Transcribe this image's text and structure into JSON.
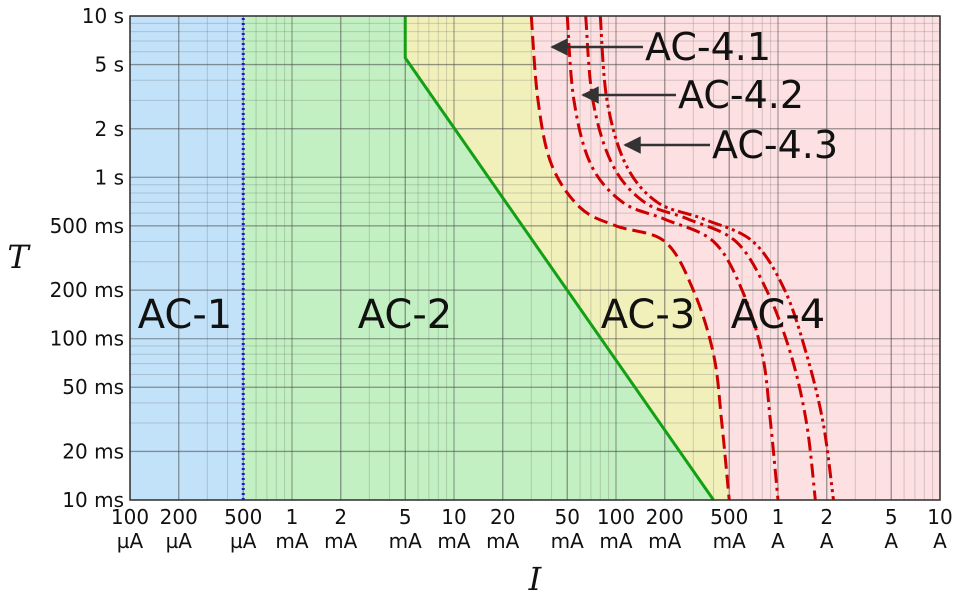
{
  "chart_data": {
    "type": "line",
    "x_label": "I",
    "y_label": "T",
    "xscale": "log",
    "yscale": "log",
    "xlim": [
      0.1,
      10000
    ],
    "ylim": [
      10,
      10000
    ],
    "xticks": [
      {
        "value": 0.1,
        "label": "100 µA"
      },
      {
        "value": 0.2,
        "label": "200 µA"
      },
      {
        "value": 0.5,
        "label": "500 µA"
      },
      {
        "value": 1,
        "label": "1 mA"
      },
      {
        "value": 2,
        "label": "2 mA"
      },
      {
        "value": 5,
        "label": "5 mA"
      },
      {
        "value": 10,
        "label": "10 mA"
      },
      {
        "value": 20,
        "label": "20 mA"
      },
      {
        "value": 50,
        "label": "50 mA"
      },
      {
        "value": 100,
        "label": "100 mA"
      },
      {
        "value": 200,
        "label": "200 mA"
      },
      {
        "value": 500,
        "label": "500 mA"
      },
      {
        "value": 1000,
        "label": "1 A"
      },
      {
        "value": 2000,
        "label": "2 A"
      },
      {
        "value": 5000,
        "label": "5 A"
      },
      {
        "value": 10000,
        "label": "10 A"
      }
    ],
    "yticks": [
      {
        "value": 10,
        "label": "10 ms"
      },
      {
        "value": 20,
        "label": "20 ms"
      },
      {
        "value": 50,
        "label": "50 ms"
      },
      {
        "value": 100,
        "label": "100 ms"
      },
      {
        "value": 200,
        "label": "200 ms"
      },
      {
        "value": 500,
        "label": "500 ms"
      },
      {
        "value": 1000,
        "label": "1 s"
      },
      {
        "value": 2000,
        "label": "2 s"
      },
      {
        "value": 5000,
        "label": "5 s"
      },
      {
        "value": 10000,
        "label": "10 s"
      }
    ],
    "grid": true,
    "regions": [
      {
        "label": "AC-1",
        "color": "#c2e2fa"
      },
      {
        "label": "AC-2",
        "color": "#c2f0c2"
      },
      {
        "label": "AC-3",
        "color": "#f2f0ba"
      },
      {
        "label": "AC-4",
        "color": "#fde0e2"
      }
    ],
    "lines": [
      {
        "x": [
          0.5,
          0.5
        ],
        "y": [
          10,
          10000
        ],
        "color": "#1a1acc",
        "dash": "dotted",
        "smooth": false
      },
      {
        "x": [
          5,
          5,
          400
        ],
        "y": [
          10000,
          5500,
          10
        ],
        "color": "#14a014",
        "dash": "solid",
        "smooth": false
      },
      {
        "x": [
          30,
          33,
          40,
          60,
          100,
          200,
          300,
          400,
          450,
          500
        ],
        "y": [
          10000,
          3000,
          1200,
          650,
          500,
          400,
          200,
          80,
          30,
          10
        ],
        "color": "#cc0000",
        "dash": "dashed",
        "smooth": true
      },
      {
        "x": [
          50,
          55,
          70,
          110,
          200,
          400,
          600,
          800,
          900,
          1000
        ],
        "y": [
          10000,
          3000,
          1200,
          700,
          550,
          400,
          200,
          80,
          30,
          10
        ],
        "color": "#cc0000",
        "dash": "dash-dot",
        "smooth": true
      },
      {
        "x": [
          65,
          72,
          95,
          150,
          280,
          550,
          850,
          1200,
          1500,
          1700
        ],
        "y": [
          10000,
          3000,
          1200,
          700,
          550,
          400,
          200,
          80,
          30,
          10
        ],
        "color": "#cc0000",
        "dash": "dash-dot",
        "smooth": true
      },
      {
        "x": [
          80,
          88,
          115,
          180,
          350,
          700,
          1100,
          1500,
          1900,
          2200
        ],
        "y": [
          10000,
          3000,
          1200,
          700,
          550,
          400,
          200,
          80,
          30,
          10
        ],
        "color": "#cc0000",
        "dash": "dash-dot-dot",
        "smooth": true
      }
    ],
    "annotations": [
      "AC-4.1",
      "AC-4.2",
      "AC-4.3"
    ]
  }
}
